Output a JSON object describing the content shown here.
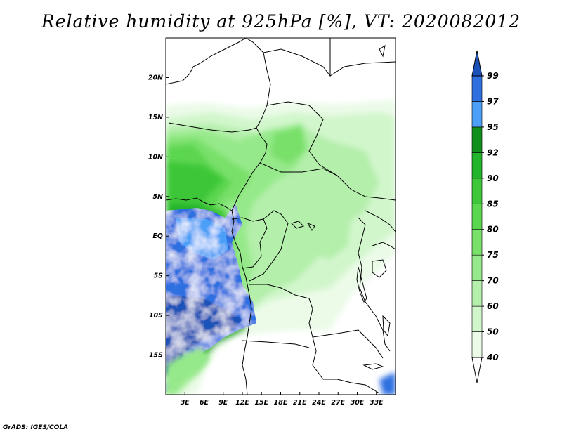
{
  "title": "Relative humidity at 925hPa [%], VT: 2020082012",
  "credit": "GrADS: IGES/COLA",
  "map": {
    "lon_range": [
      0,
      36
    ],
    "lat_range": [
      -20,
      25
    ],
    "x_ticks": [
      {
        "lon": 3,
        "label": "3E"
      },
      {
        "lon": 6,
        "label": "6E"
      },
      {
        "lon": 9,
        "label": "9E"
      },
      {
        "lon": 12,
        "label": "12E"
      },
      {
        "lon": 15,
        "label": "15E"
      },
      {
        "lon": 18,
        "label": "18E"
      },
      {
        "lon": 21,
        "label": "21E"
      },
      {
        "lon": 24,
        "label": "24E"
      },
      {
        "lon": 27,
        "label": "27E"
      },
      {
        "lon": 30,
        "label": "30E"
      },
      {
        "lon": 33,
        "label": "33E"
      }
    ],
    "y_ticks": [
      {
        "lat": 20,
        "label": "20N"
      },
      {
        "lat": 15,
        "label": "15N"
      },
      {
        "lat": 10,
        "label": "10N"
      },
      {
        "lat": 5,
        "label": "5N"
      },
      {
        "lat": 0,
        "label": "EQ"
      },
      {
        "lat": -5,
        "label": "5S"
      },
      {
        "lat": -10,
        "label": "10S"
      },
      {
        "lat": -15,
        "label": "15S"
      }
    ]
  },
  "colorbar": {
    "levels": [
      "40",
      "50",
      "60",
      "70",
      "75",
      "80",
      "85",
      "90",
      "92",
      "95",
      "97",
      "99"
    ],
    "colors": [
      "#ffffff",
      "#ebfbe8",
      "#d2f6cc",
      "#b4efab",
      "#96e98a",
      "#79e06a",
      "#5bd64f",
      "#3dc739",
      "#22b42a",
      "#118f1c",
      "#4c9ff7",
      "#2f6fe0",
      "#1c52b8"
    ]
  }
}
